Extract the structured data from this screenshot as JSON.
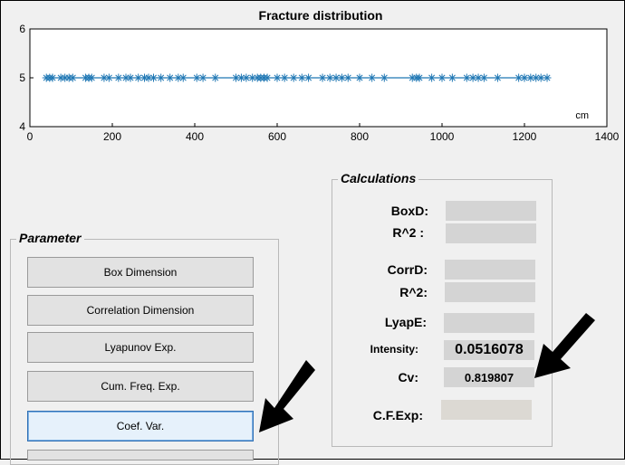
{
  "chart_data": {
    "type": "scatter",
    "title": "Fracture distribution",
    "xlabel": "",
    "ylabel": "",
    "x_unit_label": "cm",
    "xlim": [
      0,
      1400
    ],
    "ylim": [
      4,
      6
    ],
    "xticks": [
      "0",
      "200",
      "400",
      "600",
      "800",
      "1000",
      "1200",
      "1400"
    ],
    "yticks": [
      "4",
      "5",
      "6"
    ],
    "line_y": 5,
    "marker": "*",
    "color": "#1f77b4",
    "points": [
      {
        "x": 40,
        "y": 5
      },
      {
        "x": 48,
        "y": 5
      },
      {
        "x": 55,
        "y": 5
      },
      {
        "x": 75,
        "y": 5
      },
      {
        "x": 85,
        "y": 5
      },
      {
        "x": 95,
        "y": 5
      },
      {
        "x": 104,
        "y": 5
      },
      {
        "x": 135,
        "y": 5
      },
      {
        "x": 143,
        "y": 5
      },
      {
        "x": 150,
        "y": 5
      },
      {
        "x": 180,
        "y": 5
      },
      {
        "x": 192,
        "y": 5
      },
      {
        "x": 215,
        "y": 5
      },
      {
        "x": 233,
        "y": 5
      },
      {
        "x": 244,
        "y": 5
      },
      {
        "x": 263,
        "y": 5
      },
      {
        "x": 278,
        "y": 5
      },
      {
        "x": 288,
        "y": 5
      },
      {
        "x": 300,
        "y": 5
      },
      {
        "x": 318,
        "y": 5
      },
      {
        "x": 340,
        "y": 5
      },
      {
        "x": 360,
        "y": 5
      },
      {
        "x": 372,
        "y": 5
      },
      {
        "x": 405,
        "y": 5
      },
      {
        "x": 420,
        "y": 5
      },
      {
        "x": 450,
        "y": 5
      },
      {
        "x": 500,
        "y": 5
      },
      {
        "x": 513,
        "y": 5
      },
      {
        "x": 525,
        "y": 5
      },
      {
        "x": 540,
        "y": 5
      },
      {
        "x": 552,
        "y": 5
      },
      {
        "x": 560,
        "y": 5
      },
      {
        "x": 568,
        "y": 5
      },
      {
        "x": 576,
        "y": 5
      },
      {
        "x": 600,
        "y": 5
      },
      {
        "x": 618,
        "y": 5
      },
      {
        "x": 640,
        "y": 5
      },
      {
        "x": 660,
        "y": 5
      },
      {
        "x": 676,
        "y": 5
      },
      {
        "x": 710,
        "y": 5
      },
      {
        "x": 728,
        "y": 5
      },
      {
        "x": 743,
        "y": 5
      },
      {
        "x": 757,
        "y": 5
      },
      {
        "x": 772,
        "y": 5
      },
      {
        "x": 800,
        "y": 5
      },
      {
        "x": 830,
        "y": 5
      },
      {
        "x": 860,
        "y": 5
      },
      {
        "x": 928,
        "y": 5
      },
      {
        "x": 938,
        "y": 5
      },
      {
        "x": 945,
        "y": 5
      },
      {
        "x": 975,
        "y": 5
      },
      {
        "x": 1000,
        "y": 5
      },
      {
        "x": 1025,
        "y": 5
      },
      {
        "x": 1060,
        "y": 5
      },
      {
        "x": 1075,
        "y": 5
      },
      {
        "x": 1088,
        "y": 5
      },
      {
        "x": 1102,
        "y": 5
      },
      {
        "x": 1135,
        "y": 5
      },
      {
        "x": 1186,
        "y": 5
      },
      {
        "x": 1200,
        "y": 5
      },
      {
        "x": 1215,
        "y": 5
      },
      {
        "x": 1228,
        "y": 5
      },
      {
        "x": 1240,
        "y": 5
      },
      {
        "x": 1255,
        "y": 5
      }
    ]
  },
  "parameter": {
    "legend": "Parameter",
    "buttons": {
      "box_dimension": "Box Dimension",
      "correlation_dimension": "Correlation Dimension",
      "lyapunov": "Lyapunov Exp.",
      "cum_freq": "Cum. Freq. Exp.",
      "coef_var": "Coef. Var."
    }
  },
  "calculations": {
    "legend": "Calculations",
    "boxd_label": "BoxD:",
    "boxd_r2_label": "R^2 :",
    "corrd_label": "CorrD:",
    "corrd_r2_label": "R^2:",
    "lyape_label": "LyapE:",
    "intensity_label": "Intensity:",
    "intensity_value": "0.0516078",
    "cv_label": "Cv:",
    "cv_value": "0.819807",
    "cfexp_label": "C.F.Exp:"
  },
  "colors": {
    "field_bg": "#d4d4d4",
    "plot_line": "#1f77b4",
    "active_button_border": "#2f6fb3"
  }
}
